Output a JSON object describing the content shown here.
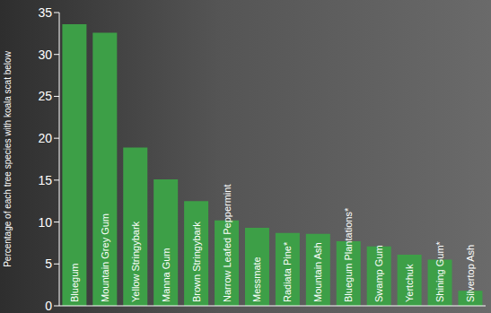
{
  "chart_data": {
    "type": "bar",
    "y_label": "Percentage of each tree species with koala scat below",
    "categories": [
      "Bluegum",
      "Mountain Grey Gum",
      "Yellow Stringybark",
      "Manna Gum",
      "Brown Stringybark",
      "Narrow Leafed Peppermint",
      "Messmate",
      "Radiata Pine*",
      "Mountain Ash",
      "Bluegum Plantations*",
      "Swamp Gum",
      "Yertchuk",
      "Shining Gum*",
      "Silvertop Ash"
    ],
    "values": [
      33.6,
      32.6,
      18.9,
      15.1,
      12.5,
      10.2,
      9.3,
      8.7,
      8.6,
      7.7,
      7.1,
      6.1,
      5.5,
      1.8
    ],
    "color": "#3d9f47",
    "ylim": [
      0,
      35
    ],
    "yticks": [
      0,
      5,
      10,
      15,
      20,
      25,
      30,
      35
    ],
    "grid": false
  }
}
